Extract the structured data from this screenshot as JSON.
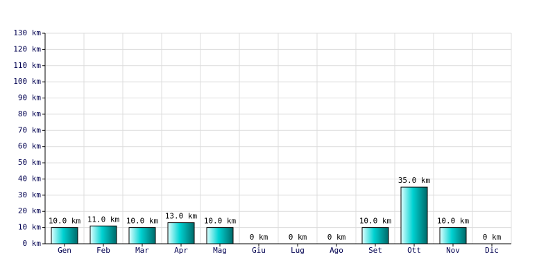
{
  "chart_data": {
    "type": "bar",
    "categories": [
      "Gen",
      "Feb",
      "Mar",
      "Apr",
      "Mag",
      "Giu",
      "Lug",
      "Ago",
      "Set",
      "Ott",
      "Nov",
      "Dic"
    ],
    "values": [
      10,
      11,
      10,
      13,
      10,
      0,
      0,
      0,
      10,
      35,
      10,
      0
    ],
    "value_labels": [
      "10.0 km",
      "11.0 km",
      "10.0 km",
      "13.0 km",
      "10.0 km",
      "0 km",
      "0 km",
      "0 km",
      "10.0 km",
      "35.0 km",
      "10.0 km",
      "0 km"
    ],
    "color": "#00d2d2",
    "ylim": [
      0,
      130
    ],
    "yticks": [
      {
        "value": 0,
        "label": "0 km"
      },
      {
        "value": 10,
        "label": "10 km"
      },
      {
        "value": 20,
        "label": "20 km"
      },
      {
        "value": 30,
        "label": "30 km"
      },
      {
        "value": 40,
        "label": "40 km"
      },
      {
        "value": 50,
        "label": "50 km"
      },
      {
        "value": 60,
        "label": "60 km"
      },
      {
        "value": 70,
        "label": "70 km"
      },
      {
        "value": 80,
        "label": "80 km"
      },
      {
        "value": 90,
        "label": "90 km"
      },
      {
        "value": 100,
        "label": "100 km"
      },
      {
        "value": 110,
        "label": "110 km"
      },
      {
        "value": 120,
        "label": "120 km"
      },
      {
        "value": 130,
        "label": "130 km"
      }
    ],
    "grid": true
  }
}
